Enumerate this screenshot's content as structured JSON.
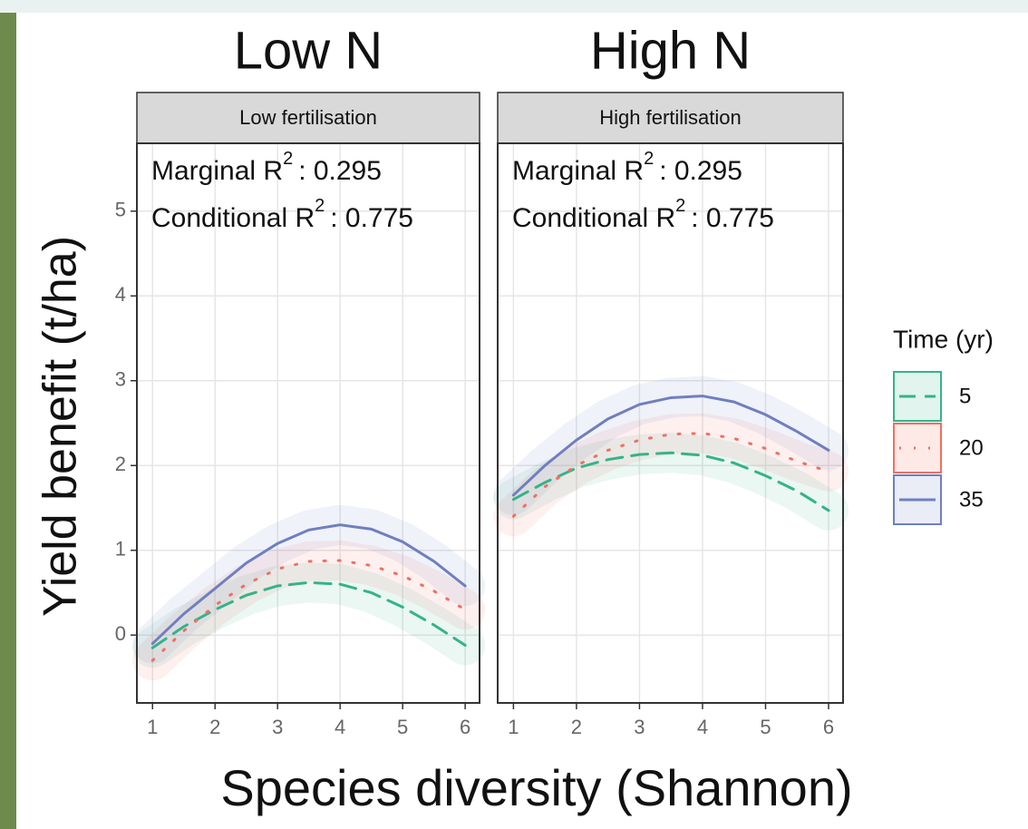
{
  "shared": {
    "xlabel": "Species diversity (Shannon)",
    "ylabel": "Yield benefit (t/ha)",
    "legend_title": "Time (yr)"
  },
  "chart_data": [
    {
      "type": "line",
      "title": "Low N",
      "subtitle": "Low fertilisation",
      "annotations": [
        {
          "prefix": "Marginal R",
          "sup": "2",
          "suffix": ": 0.295"
        },
        {
          "prefix": "Conditional R",
          "sup": "2",
          "suffix": ": 0.775"
        }
      ],
      "x": [
        1,
        1.5,
        2,
        2.5,
        3,
        3.5,
        4,
        4.5,
        5,
        5.5,
        6
      ],
      "series": [
        {
          "name": "5",
          "color": "#35b38a",
          "dash": "long-dash",
          "values": [
            -0.15,
            0.1,
            0.3,
            0.47,
            0.58,
            0.62,
            0.6,
            0.5,
            0.33,
            0.12,
            -0.12
          ]
        },
        {
          "name": "20",
          "color": "#f07060",
          "dash": "dotted",
          "values": [
            -0.3,
            0.05,
            0.35,
            0.6,
            0.78,
            0.87,
            0.88,
            0.82,
            0.7,
            0.52,
            0.3
          ]
        },
        {
          "name": "35",
          "color": "#6f7fc0",
          "dash": "solid",
          "values": [
            -0.1,
            0.25,
            0.55,
            0.85,
            1.08,
            1.24,
            1.3,
            1.25,
            1.1,
            0.87,
            0.58
          ]
        }
      ],
      "xlim": [
        0.75,
        6.23
      ],
      "xticks": [
        1,
        2,
        3,
        4,
        5,
        6
      ],
      "ylim": [
        -0.8,
        5.8
      ],
      "yticks": [
        0,
        1,
        2,
        3,
        4,
        5
      ],
      "grid": true
    },
    {
      "type": "line",
      "title": "High N",
      "subtitle": "High fertilisation",
      "annotations": [
        {
          "prefix": "Marginal R",
          "sup": "2",
          "suffix": ": 0.295"
        },
        {
          "prefix": "Conditional R",
          "sup": "2",
          "suffix": ": 0.775"
        }
      ],
      "x": [
        1,
        1.5,
        2,
        2.5,
        3,
        3.5,
        4,
        4.5,
        5,
        5.5,
        6
      ],
      "series": [
        {
          "name": "5",
          "color": "#35b38a",
          "dash": "long-dash",
          "values": [
            1.6,
            1.8,
            1.97,
            2.07,
            2.13,
            2.15,
            2.12,
            2.03,
            1.88,
            1.7,
            1.47
          ]
        },
        {
          "name": "20",
          "color": "#f07060",
          "dash": "dotted",
          "values": [
            1.4,
            1.75,
            2.0,
            2.18,
            2.3,
            2.37,
            2.38,
            2.32,
            2.2,
            2.05,
            1.93
          ]
        },
        {
          "name": "35",
          "color": "#6f7fc0",
          "dash": "solid",
          "values": [
            1.65,
            2.0,
            2.3,
            2.55,
            2.72,
            2.8,
            2.82,
            2.75,
            2.6,
            2.4,
            2.18
          ]
        }
      ],
      "xlim": [
        0.75,
        6.23
      ],
      "xticks": [
        1,
        2,
        3,
        4,
        5,
        6
      ],
      "ylim": [
        -0.8,
        5.8
      ],
      "yticks": [
        0,
        1,
        2,
        3,
        4,
        5
      ],
      "grid": true
    }
  ]
}
